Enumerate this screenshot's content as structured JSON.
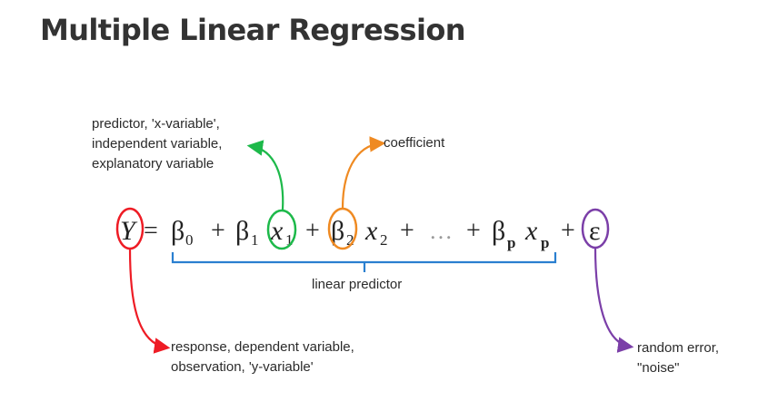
{
  "title": "Multiple Linear Regression",
  "equation": {
    "response": "Y",
    "equals": "=",
    "beta": "β",
    "sub0": "0",
    "sub1": "1",
    "sub2": "2",
    "subp": "p",
    "x": "x",
    "plus": "+",
    "ellipsis": "…",
    "epsilon": "ε"
  },
  "annotations": {
    "predictor": [
      "predictor,  'x-variable',",
      "independent variable,",
      "explanatory variable"
    ],
    "coefficient": "coefficient",
    "linear_predictor": "linear predictor",
    "response": [
      "response, dependent variable,",
      "observation, 'y-variable'"
    ],
    "error": [
      "random error,",
      "\"noise\""
    ]
  },
  "colors": {
    "response": "#ee1c25",
    "predictor": "#1db94a",
    "coefficient": "#ef8a22",
    "error": "#7b3fa8",
    "linear_predictor": "#2a7fd0"
  }
}
